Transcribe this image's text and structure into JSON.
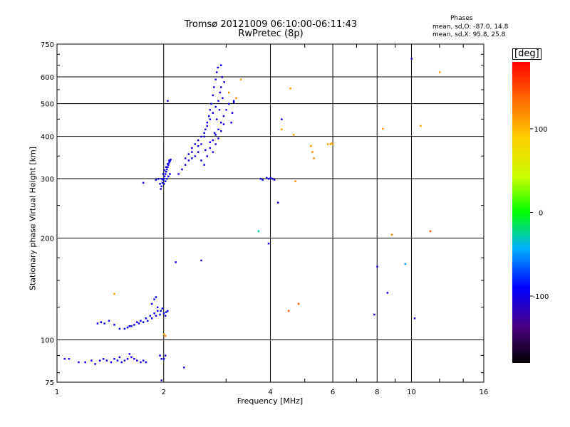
{
  "chart_data": {
    "type": "scatter",
    "title": "Tromsø 20121009 06:10:00-06:11:43",
    "subtitle": "RwPretec (8p)",
    "xlabel": "Frequency [MHz]",
    "ylabel": "Stationary phase Virtual Height [km]",
    "x_scale": "log",
    "y_scale": "log",
    "xlim": [
      1,
      16
    ],
    "ylim": [
      75,
      750
    ],
    "x_ticks": [
      1,
      2,
      4,
      6,
      8,
      10,
      16
    ],
    "x_tick_labels": [
      "1",
      "2",
      "4",
      "6",
      "8",
      "10",
      "16"
    ],
    "y_ticks": [
      75,
      100,
      200,
      300,
      400,
      500,
      600,
      750
    ],
    "y_tick_labels": [
      "75",
      "100",
      "200",
      "300",
      "400",
      "500",
      "600",
      "750"
    ],
    "grid": true,
    "stats": {
      "title": "Phases",
      "line0": "mean, sd,O: -87.0, 14.8",
      "lineX": "mean, sd,X:  95.8, 25.8"
    },
    "colorbar": {
      "label": "[deg]",
      "ticks": [
        -100,
        0,
        100
      ],
      "tick_labels": [
        "-100",
        "0",
        "100"
      ],
      "range": [
        -180,
        180
      ]
    },
    "series": [
      {
        "description": "O-mode F-layer trace, low segment",
        "phase": -100,
        "points": [
          [
            1.96,
            280
          ],
          [
            1.97,
            285
          ],
          [
            1.98,
            292
          ],
          [
            1.99,
            298
          ],
          [
            2.0,
            300
          ],
          [
            2.01,
            305
          ],
          [
            2.02,
            310
          ],
          [
            2.03,
            315
          ],
          [
            2.04,
            320
          ],
          [
            2.05,
            325
          ],
          [
            2.06,
            330
          ],
          [
            2.07,
            335
          ],
          [
            2.08,
            338
          ],
          [
            2.09,
            342
          ],
          [
            1.95,
            290
          ],
          [
            1.97,
            300
          ],
          [
            1.99,
            310
          ],
          [
            2.01,
            318
          ],
          [
            2.03,
            325
          ],
          [
            2.05,
            332
          ],
          [
            2.07,
            340
          ],
          [
            1.9,
            298
          ],
          [
            1.93,
            300
          ],
          [
            2.0,
            290
          ],
          [
            2.02,
            295
          ],
          [
            2.04,
            300
          ],
          [
            2.06,
            305
          ],
          [
            2.08,
            310
          ],
          [
            1.75,
            292
          ]
        ]
      },
      {
        "description": "O-mode F-layer trace, steep segment",
        "phase": -100,
        "points": [
          [
            2.2,
            310
          ],
          [
            2.25,
            320
          ],
          [
            2.3,
            330
          ],
          [
            2.35,
            340
          ],
          [
            2.4,
            345
          ],
          [
            2.45,
            350
          ],
          [
            2.5,
            360
          ],
          [
            2.55,
            380
          ],
          [
            2.6,
            400
          ],
          [
            2.62,
            420
          ],
          [
            2.65,
            440
          ],
          [
            2.68,
            460
          ],
          [
            2.7,
            480
          ],
          [
            2.72,
            500
          ],
          [
            2.75,
            530
          ],
          [
            2.77,
            560
          ],
          [
            2.8,
            590
          ],
          [
            2.82,
            620
          ],
          [
            2.84,
            640
          ],
          [
            2.3,
            345
          ],
          [
            2.35,
            355
          ],
          [
            2.4,
            370
          ],
          [
            2.45,
            380
          ],
          [
            2.5,
            390
          ],
          [
            2.55,
            400
          ],
          [
            2.6,
            410
          ],
          [
            2.65,
            430
          ],
          [
            2.7,
            450
          ],
          [
            2.75,
            470
          ],
          [
            2.8,
            490
          ],
          [
            2.85,
            510
          ],
          [
            2.88,
            540
          ],
          [
            2.9,
            560
          ],
          [
            2.92,
            600
          ],
          [
            2.6,
            330
          ],
          [
            2.65,
            350
          ],
          [
            2.7,
            370
          ],
          [
            2.75,
            390
          ],
          [
            2.8,
            405
          ],
          [
            2.85,
            420
          ],
          [
            2.9,
            440
          ],
          [
            2.95,
            460
          ],
          [
            3.0,
            480
          ],
          [
            3.05,
            500
          ],
          [
            3.1,
            440
          ],
          [
            3.12,
            470
          ],
          [
            3.15,
            510
          ],
          [
            2.75,
            360
          ],
          [
            2.8,
            380
          ],
          [
            2.85,
            395
          ],
          [
            2.9,
            415
          ],
          [
            2.95,
            435
          ],
          [
            2.4,
            360
          ],
          [
            2.5,
            375
          ],
          [
            2.55,
            340
          ],
          [
            2.62,
            365
          ],
          [
            2.7,
            385
          ],
          [
            2.78,
            410
          ],
          [
            2.82,
            450
          ],
          [
            2.87,
            480
          ],
          [
            2.93,
            520
          ],
          [
            2.96,
            580
          ],
          [
            2.9,
            650
          ]
        ]
      },
      {
        "description": "E-layer trace ~100-130 km",
        "phase": -95,
        "points": [
          [
            1.3,
            112
          ],
          [
            1.33,
            113
          ],
          [
            1.36,
            112
          ],
          [
            1.4,
            114
          ],
          [
            1.45,
            111
          ],
          [
            1.5,
            108
          ],
          [
            1.55,
            108
          ],
          [
            1.6,
            110
          ],
          [
            1.65,
            111
          ],
          [
            1.7,
            112
          ],
          [
            1.75,
            113
          ],
          [
            1.8,
            114
          ],
          [
            1.85,
            116
          ],
          [
            1.9,
            118
          ],
          [
            1.95,
            119
          ],
          [
            2.0,
            120
          ],
          [
            2.03,
            121
          ],
          [
            2.05,
            122
          ],
          [
            1.72,
            114
          ],
          [
            1.78,
            116
          ],
          [
            1.83,
            118
          ],
          [
            1.88,
            120
          ],
          [
            1.92,
            122
          ],
          [
            1.96,
            122
          ],
          [
            1.85,
            128
          ],
          [
            1.88,
            132
          ],
          [
            1.9,
            134
          ],
          [
            1.58,
            109
          ],
          [
            1.62,
            110
          ],
          [
            1.68,
            113
          ],
          [
            1.92,
            125
          ],
          [
            1.98,
            124
          ],
          [
            2.02,
            118
          ]
        ]
      },
      {
        "description": "Low trace ~85-90 km",
        "phase": -100,
        "points": [
          [
            1.05,
            88
          ],
          [
            1.08,
            88
          ],
          [
            1.15,
            86
          ],
          [
            1.2,
            86
          ],
          [
            1.25,
            87
          ],
          [
            1.28,
            85
          ],
          [
            1.32,
            87
          ],
          [
            1.35,
            88
          ],
          [
            1.38,
            87
          ],
          [
            1.42,
            86
          ],
          [
            1.45,
            88
          ],
          [
            1.48,
            87
          ],
          [
            1.52,
            86
          ],
          [
            1.55,
            87
          ],
          [
            1.58,
            88
          ],
          [
            1.62,
            89
          ],
          [
            1.65,
            88
          ],
          [
            1.68,
            87
          ],
          [
            1.72,
            86
          ],
          [
            1.75,
            87
          ],
          [
            1.78,
            86
          ],
          [
            1.95,
            90
          ],
          [
            1.97,
            88
          ],
          [
            2.0,
            88
          ],
          [
            2.02,
            90
          ],
          [
            1.6,
            91
          ],
          [
            1.5,
            89
          ],
          [
            2.28,
            83
          ],
          [
            1.97,
            76
          ]
        ]
      },
      {
        "description": "Scattered returns",
        "phase": null,
        "points": [
          [
            1.45,
            137,
            110
          ],
          [
            2.0,
            104,
            110
          ],
          [
            2.02,
            103,
            120
          ],
          [
            2.16,
            170,
            -100
          ],
          [
            2.55,
            172,
            -100
          ],
          [
            2.05,
            510,
            -100
          ],
          [
            3.05,
            540,
            120
          ],
          [
            3.2,
            520,
            120
          ],
          [
            3.3,
            590,
            110
          ],
          [
            3.15,
            505,
            -100
          ],
          [
            3.75,
            300,
            -100
          ],
          [
            3.8,
            298,
            -100
          ],
          [
            3.9,
            302,
            -100
          ],
          [
            3.95,
            300,
            -100
          ],
          [
            4.0,
            302,
            -100
          ],
          [
            4.05,
            300,
            -100
          ],
          [
            4.1,
            298,
            -100
          ],
          [
            3.7,
            210,
            -30
          ],
          [
            3.95,
            193,
            -100
          ],
          [
            4.2,
            255,
            -100
          ],
          [
            4.3,
            450,
            -100
          ],
          [
            4.3,
            420,
            110
          ],
          [
            4.55,
            555,
            110
          ],
          [
            4.65,
            405,
            110
          ],
          [
            4.7,
            295,
            120
          ],
          [
            5.2,
            375,
            120
          ],
          [
            5.25,
            360,
            120
          ],
          [
            5.3,
            345,
            120
          ],
          [
            5.8,
            380,
            110
          ],
          [
            5.9,
            380,
            110
          ],
          [
            6.0,
            380,
            110
          ],
          [
            5.95,
            382,
            110
          ],
          [
            4.5,
            122,
            140
          ],
          [
            4.8,
            128,
            140
          ],
          [
            7.85,
            119,
            -100
          ],
          [
            8.0,
            165,
            -100
          ],
          [
            8.55,
            138,
            -100
          ],
          [
            8.8,
            205,
            120
          ],
          [
            9.6,
            168,
            -50
          ],
          [
            10.0,
            680,
            -100
          ],
          [
            10.2,
            116,
            -100
          ],
          [
            8.3,
            422,
            110
          ],
          [
            10.6,
            430,
            110
          ],
          [
            11.3,
            210,
            140
          ],
          [
            12.0,
            620,
            110
          ]
        ]
      }
    ]
  }
}
